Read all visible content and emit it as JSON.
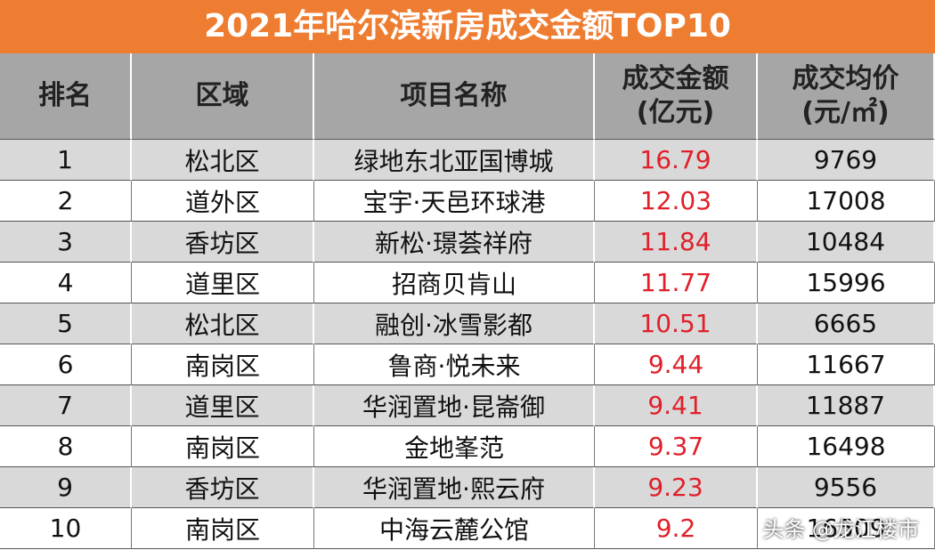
{
  "header": {
    "title": "2021年哈尔滨新房成交金额TOP10"
  },
  "table": {
    "columns": [
      [
        "排名"
      ],
      [
        "区域"
      ],
      [
        "项目名称"
      ],
      [
        "成交金额",
        "(亿元)"
      ],
      [
        "成交均价",
        "(元/㎡)"
      ]
    ],
    "rows": [
      [
        "1",
        "松北区",
        "绿地东北亚国博城",
        "16.79",
        "9769"
      ],
      [
        "2",
        "道外区",
        "宝宇·天邑环球港",
        "12.03",
        "17008"
      ],
      [
        "3",
        "香坊区",
        "新松·璟荟祥府",
        "11.84",
        "10484"
      ],
      [
        "4",
        "道里区",
        "招商贝肯山",
        "11.77",
        "15996"
      ],
      [
        "5",
        "松北区",
        "融创·冰雪影都",
        "10.51",
        "6665"
      ],
      [
        "6",
        "南岗区",
        "鲁商·悦未来",
        "9.44",
        "11667"
      ],
      [
        "7",
        "道里区",
        "华润置地·昆崙御",
        "9.41",
        "11887"
      ],
      [
        "8",
        "南岗区",
        "金地峯范",
        "9.37",
        "16498"
      ],
      [
        "9",
        "香坊区",
        "华润置地·熙云府",
        "9.23",
        "9556"
      ],
      [
        "10",
        "南岗区",
        "中海云麓公馆",
        "9.2",
        "16509"
      ]
    ]
  },
  "watermark": "头条 @龙江楼市"
}
